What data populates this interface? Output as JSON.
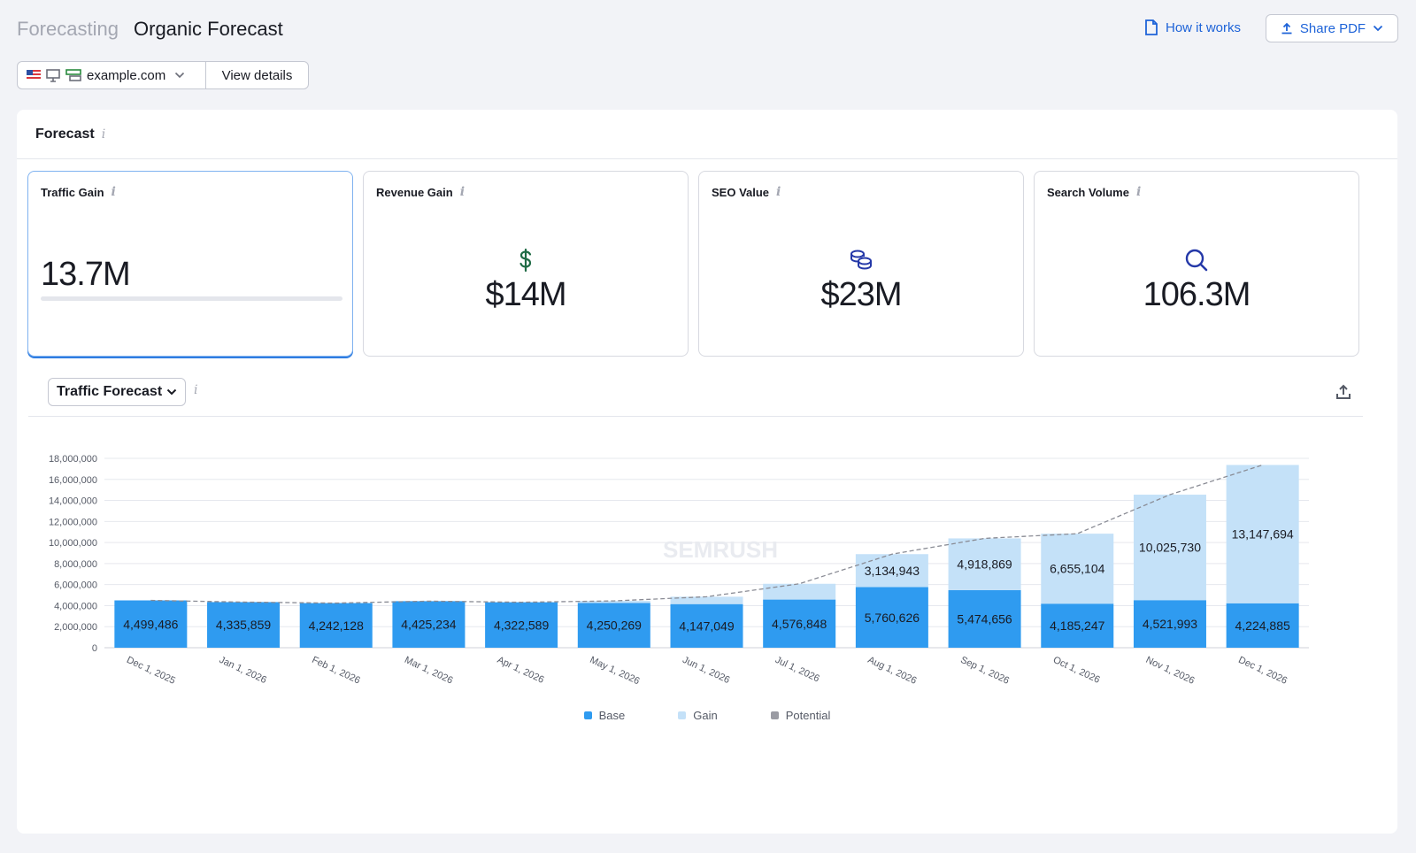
{
  "header": {
    "breadcrumb": "Forecasting",
    "title": "Organic Forecast",
    "how_it_works": "How it works",
    "share_pdf": "Share PDF"
  },
  "toolbar": {
    "domain": "example.com",
    "view_details": "View details"
  },
  "forecast": {
    "title": "Forecast",
    "info": "i",
    "kpis": [
      {
        "label": "Traffic Gain",
        "value": "13.7M",
        "icon": "none"
      },
      {
        "label": "Revenue Gain",
        "value": "$14M",
        "icon": "dollar-icon"
      },
      {
        "label": "SEO Value",
        "value": "$23M",
        "icon": "coins-icon"
      },
      {
        "label": "Search Volume",
        "value": "106.3M",
        "icon": "search-icon"
      }
    ]
  },
  "chart_section": {
    "metric": "Traffic Forecast",
    "watermark": "SEMRUSH"
  },
  "colors": {
    "base": "#2f9bf0",
    "gain": "#c4e1f8",
    "potential": "#9a9ba3",
    "accent": "#1e63d8"
  },
  "chart_data": {
    "type": "bar",
    "stacked": true,
    "categories": [
      "Dec 1, 2025",
      "Jan 1, 2026",
      "Feb 1, 2026",
      "Mar 1, 2026",
      "Apr 1, 2026",
      "May 1, 2026",
      "Jun 1, 2026",
      "Jul 1, 2026",
      "Aug 1, 2026",
      "Sep 1, 2026",
      "Oct 1, 2026",
      "Nov 1, 2026",
      "Dec 1, 2026"
    ],
    "series": [
      {
        "name": "Base",
        "values": [
          4499486,
          4335859,
          4242128,
          4425234,
          4322589,
          4250269,
          4147049,
          4576848,
          5760626,
          5474656,
          4185247,
          4521993,
          4224885
        ]
      },
      {
        "name": "Gain",
        "values": [
          0,
          0,
          0,
          0,
          0,
          200000,
          700000,
          1500000,
          3134943,
          4918869,
          6655104,
          10025730,
          13147694
        ]
      },
      {
        "name": "Potential",
        "type": "line",
        "values": [
          4499486,
          4335859,
          4242128,
          4425234,
          4322589,
          4450269,
          4847049,
          6076848,
          8895569,
          10393525,
          10840351,
          14547723,
          17372579
        ]
      }
    ],
    "bar_labels": {
      "base": [
        "4,499,486",
        "4,335,859",
        "4,242,128",
        "4,425,234",
        "4,322,589",
        "4,250,269",
        "4,147,049",
        "4,576,848",
        "5,760,626",
        "5,474,656",
        "4,185,247",
        "4,521,993",
        "4,224,885"
      ],
      "gain": [
        "",
        "",
        "",
        "",
        "",
        "",
        "",
        "",
        "3,134,943",
        "4,918,869",
        "6,655,104",
        "10,025,730",
        "13,147,694"
      ]
    },
    "yticks": [
      "0",
      "2,000,000",
      "4,000,000",
      "6,000,000",
      "8,000,000",
      "10,000,000",
      "12,000,000",
      "14,000,000",
      "16,000,000",
      "18,000,000"
    ],
    "ylim": [
      0,
      18000000
    ],
    "legend": [
      "Base",
      "Gain",
      "Potential"
    ],
    "legend_position": "bottom",
    "grid": true
  }
}
